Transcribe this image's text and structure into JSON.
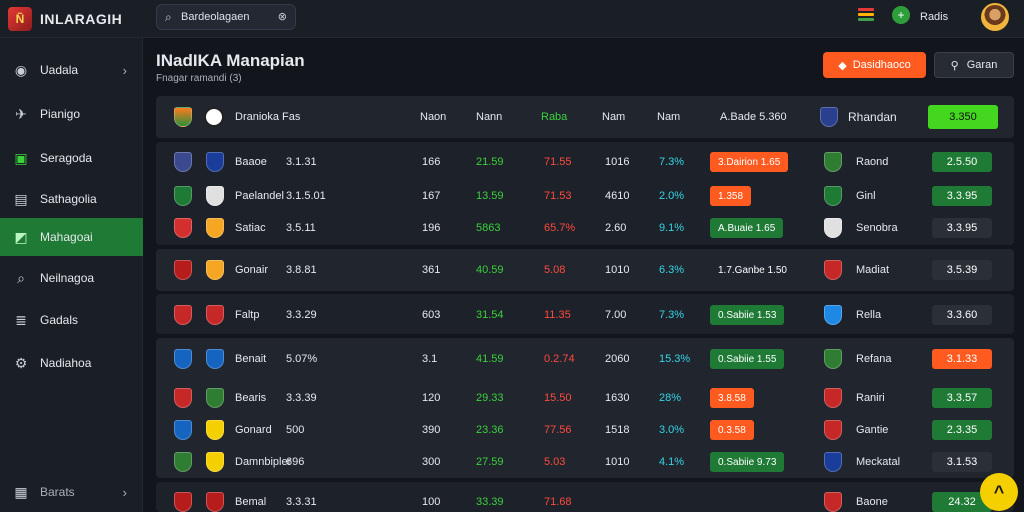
{
  "app": {
    "logo_text": "Ñ",
    "title": "INLARAGIH"
  },
  "search": {
    "value": "Bardeolagaen",
    "placeholder": ""
  },
  "user": {
    "name": "Radis"
  },
  "topbar_bar_colors": [
    "#e53935",
    "#ffb300",
    "#43a047"
  ],
  "sidebar": {
    "items": [
      {
        "label": "Uadala",
        "icon": "circle-icon",
        "glyph": "◉",
        "chevron": "›",
        "active": false
      },
      {
        "label": "Pianigo",
        "icon": "plane-icon",
        "glyph": "✈",
        "chevron": "",
        "active": false
      },
      {
        "label": "Seragoda",
        "icon": "monitor-icon",
        "glyph": "▣",
        "chevron": "",
        "active": false
      },
      {
        "label": "Sathagolia",
        "icon": "folder-icon",
        "glyph": "▤",
        "chevron": "",
        "active": false
      },
      {
        "label": "Mahagoai",
        "icon": "chart-icon",
        "glyph": "◩",
        "chevron": "",
        "active": true
      },
      {
        "label": "Neilnagoa",
        "icon": "search-icon",
        "glyph": "⌕",
        "chevron": "",
        "active": false
      },
      {
        "label": "Gadals",
        "icon": "list-icon",
        "glyph": "≣",
        "chevron": "",
        "active": false
      },
      {
        "label": "Nadiahoa",
        "icon": "settings-icon",
        "glyph": "⚙",
        "chevron": "",
        "active": false
      }
    ],
    "footer": {
      "label": "Barats",
      "icon": "building-icon",
      "glyph": "▦",
      "chevron": "›"
    }
  },
  "page": {
    "title": "INadIKA Manapian",
    "subtitle": "Fnagar ramandi (3)",
    "primary_button": "Dasidhaoco",
    "secondary_button": "Garan"
  },
  "table": {
    "header": {
      "team": "Dranioka",
      "team_short": "Fas",
      "col1": "Naon",
      "col2": "Nann",
      "col3": "Raba",
      "col4": "Nam",
      "col5": "Nam",
      "col6": "A.Bade 5.360",
      "opponent": "Rhandan",
      "odds": "3.350"
    },
    "rows": [
      {
        "team": "Baaoe",
        "val": "3.1.31",
        "c1": "166",
        "c2": "21.59",
        "c3": "71.55",
        "c4": "1016",
        "c5": "7.3%",
        "badge": "3.Dairion 1.65",
        "badge_color": "#ff5a1f",
        "opponent": "Raond",
        "odds": "2.5.50",
        "odds_color": "#1e7a34"
      },
      {
        "team": "Paelandel",
        "val": "3.1.5.01",
        "c1": "167",
        "c2": "13.59",
        "c3": "71.53",
        "c4": "4610",
        "c5": "2.0%",
        "badge": "1.358",
        "badge_color": "#ff5a1f",
        "opponent": "Ginl",
        "odds": "3.3.95",
        "odds_color": "#1e7a34"
      },
      {
        "team": "Satiac",
        "val": "3.5.11",
        "c1": "196",
        "c2": "5863",
        "c3": "65.7%",
        "c4": "2.60",
        "c5": "9.1%",
        "badge": "A.Buaie 1.65",
        "badge_color": "#1e7a34",
        "opponent": "Senobra",
        "odds": "3.3.95",
        "odds_color": "#2a2f38"
      },
      {
        "team": "Gonair",
        "val": "3.8.81",
        "c1": "361",
        "c2": "40.59",
        "c3": "5.08",
        "c4": "1010",
        "c5": "6.3%",
        "badge": "1.7.Ganbe 1.50",
        "badge_color": "transparent",
        "opponent": "Madiat",
        "odds": "3.5.39",
        "odds_color": "#2a2f38"
      },
      {
        "team": "Faltp",
        "val": "3.3.29",
        "c1": "603",
        "c2": "31.54",
        "c3": "11.35",
        "c4": "7.00",
        "c5": "7.3%",
        "badge": "0.Sabiie 1.53",
        "badge_color": "#1e7a34",
        "opponent": "Rella",
        "odds": "3.3.60",
        "odds_color": "#2a2f38"
      },
      {
        "team": "Benait",
        "val": "5.07%",
        "c1": "3.1",
        "c2": "41.59",
        "c3": "0.2.74",
        "c4": "2060",
        "c5": "15.3%",
        "badge": "0.Sabiie 1.55",
        "badge_color": "#1e7a34",
        "opponent": "Refana",
        "odds": "3.1.33",
        "odds_color": "#ff5a1f"
      },
      {
        "team": "Bearis",
        "val": "3.3.39",
        "c1": "120",
        "c2": "29.33",
        "c3": "15.50",
        "c4": "1630",
        "c5": "28%",
        "badge": "3.8.58",
        "badge_color": "#ff5a1f",
        "opponent": "Raniri",
        "odds": "3.3.57",
        "odds_color": "#1e7a34"
      },
      {
        "team": "Gonard",
        "val": "500",
        "c1": "390",
        "c2": "23.36",
        "c3": "77.56",
        "c4": "1518",
        "c5": "3.0%",
        "badge": "0.3.58",
        "badge_color": "#ff5a1f",
        "opponent": "Gantie",
        "odds": "2.3.35",
        "odds_color": "#1e7a34"
      },
      {
        "team": "Damnbipler",
        "val": "696",
        "c1": "300",
        "c2": "27.59",
        "c3": "5.03",
        "c4": "1010",
        "c5": "4.1%",
        "badge": "0.Sabiie 9.73",
        "badge_color": "#1e7a34",
        "opponent": "Meckatal",
        "odds": "3.1.53",
        "odds_color": "#2a2f38"
      },
      {
        "team": "Bemal",
        "val": "3.3.31",
        "c1": "100",
        "c2": "33.39",
        "c3": "71.68",
        "c4": "",
        "c5": "",
        "badge": "",
        "badge_color": "transparent",
        "opponent": "Baone",
        "odds": "24.32",
        "odds_color": "#1e7a34"
      }
    ]
  },
  "colors": {
    "accent_green": "#1e7a34",
    "accent_orange": "#ff5a1f",
    "bright_green": "#3bd13b",
    "red_value": "#ff4a3d",
    "cyan_value": "#35d5e6",
    "lime_header_odds": "#43d71f"
  },
  "fab": {
    "icon": "chevron-up-icon",
    "glyph": "^"
  }
}
